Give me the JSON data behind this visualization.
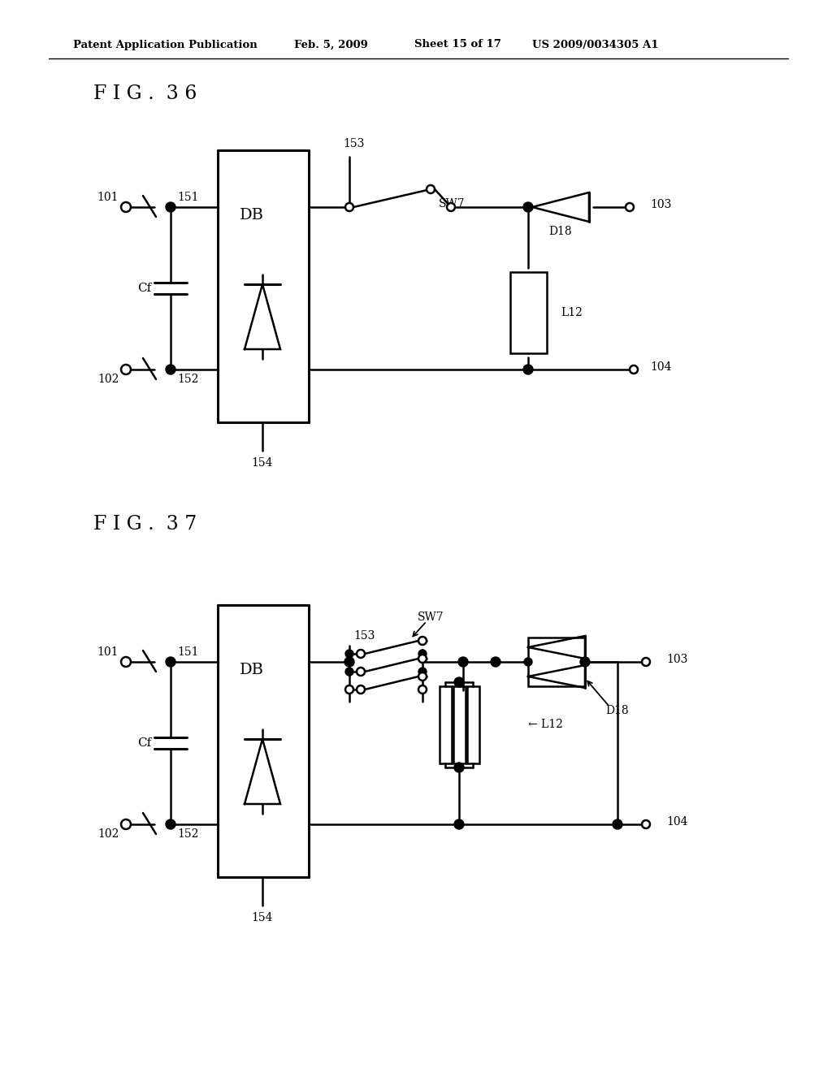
{
  "bg_color": "#ffffff",
  "header_text": "Patent Application Publication",
  "header_date": "Feb. 5, 2009",
  "header_sheet": "Sheet 15 of 17",
  "header_patent": "US 2009/0034305 A1",
  "fig36_label": "F I G .  3 6",
  "fig37_label": "F I G .  3 7"
}
